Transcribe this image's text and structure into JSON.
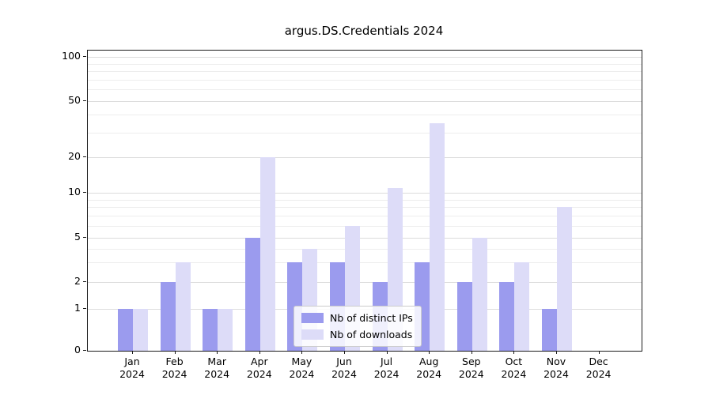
{
  "title": "argus.DS.Credentials 2024",
  "chart_data": {
    "type": "bar",
    "title": "argus.DS.Credentials 2024",
    "categories": [
      "Jan",
      "Feb",
      "Mar",
      "Apr",
      "May",
      "Jun",
      "Jul",
      "Aug",
      "Sep",
      "Oct",
      "Nov",
      "Dec"
    ],
    "category_year": "2024",
    "series": [
      {
        "name": "Nb of distinct IPs",
        "color": "#9b9bee",
        "values": [
          1,
          2,
          1,
          5,
          3,
          3,
          2,
          3,
          2,
          2,
          1,
          0
        ]
      },
      {
        "name": "Nb of downloads",
        "color": "#dddcf8",
        "values": [
          1,
          3,
          1,
          20,
          4,
          6,
          11,
          35,
          5,
          3,
          8,
          0
        ]
      }
    ],
    "yscale": "log-with-zero",
    "yticks": [
      0,
      1,
      2,
      5,
      10,
      20,
      50,
      100
    ],
    "yminor_gridlines": [
      3,
      4,
      6,
      7,
      8,
      9,
      30,
      40,
      60,
      70,
      80,
      90
    ],
    "ylim": [
      0,
      110
    ],
    "grid": "horizontal",
    "legend_position": "inside lower-center"
  },
  "legend": {
    "items": [
      {
        "label": "Nb of distinct IPs"
      },
      {
        "label": "Nb of downloads"
      }
    ]
  }
}
